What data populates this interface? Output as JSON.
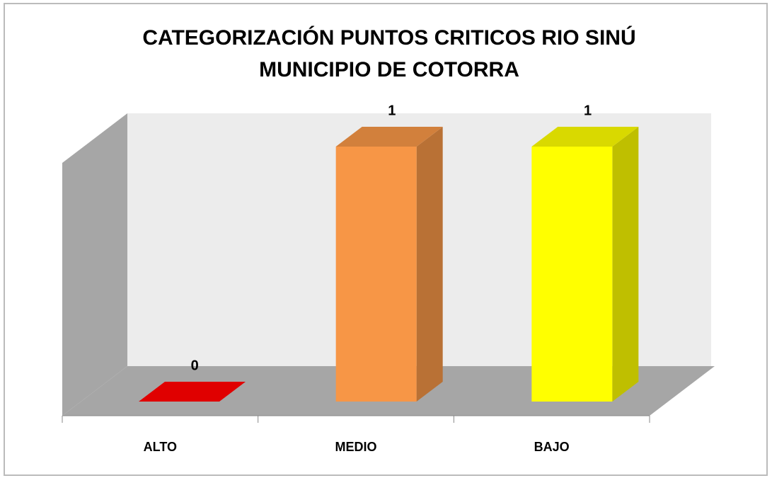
{
  "chart_data": {
    "type": "bar3d",
    "title": [
      "CATEGORIZACIÓN PUNTOS  CRITICOS RIO SINÚ",
      "MUNICIPIO DE COTORRA"
    ],
    "categories": [
      "ALTO",
      "MEDIO",
      "BAJO"
    ],
    "values": [
      0,
      1,
      1
    ],
    "colors": [
      "#e00000",
      "#f79646",
      "#ffff00"
    ],
    "ylim": [
      0,
      1.15
    ]
  }
}
